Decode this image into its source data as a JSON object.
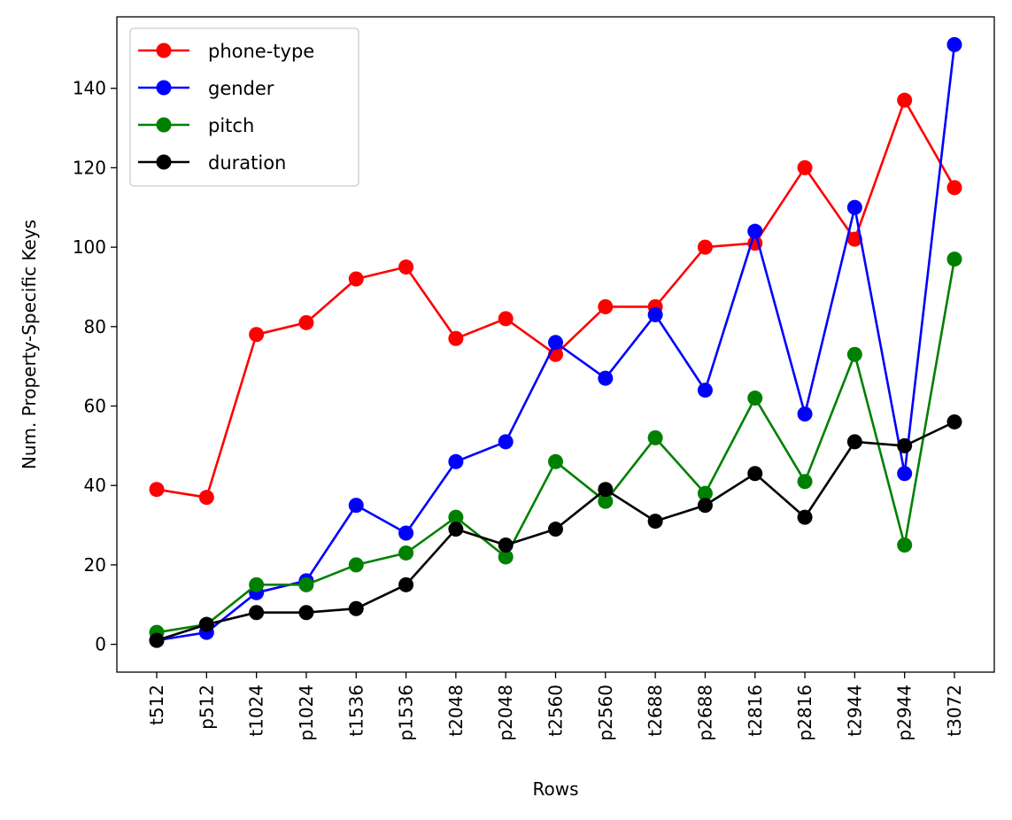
{
  "chart_data": {
    "type": "line",
    "xlabel": "Rows",
    "ylabel": "Num. Property-Specific Keys",
    "categories": [
      "t512",
      "p512",
      "t1024",
      "p1024",
      "t1536",
      "p1536",
      "t2048",
      "p2048",
      "t2560",
      "p2560",
      "t2688",
      "p2688",
      "t2816",
      "p2816",
      "t2944",
      "p2944",
      "t3072"
    ],
    "ylim": [
      -7,
      158
    ],
    "yticks": [
      0,
      20,
      40,
      60,
      80,
      100,
      120,
      140
    ],
    "grid": false,
    "legend_position": "top-left",
    "series": [
      {
        "name": "phone-type",
        "color": "#ff0000",
        "values": [
          39,
          37,
          78,
          81,
          92,
          95,
          77,
          82,
          73,
          85,
          85,
          100,
          101,
          120,
          102,
          137,
          115
        ]
      },
      {
        "name": "gender",
        "color": "#0000ff",
        "values": [
          1,
          3,
          13,
          16,
          35,
          28,
          46,
          51,
          76,
          67,
          83,
          64,
          104,
          58,
          110,
          43,
          151
        ]
      },
      {
        "name": "pitch",
        "color": "#008000",
        "values": [
          3,
          5,
          15,
          15,
          20,
          23,
          32,
          22,
          46,
          36,
          52,
          38,
          62,
          41,
          73,
          25,
          97
        ]
      },
      {
        "name": "duration",
        "color": "#000000",
        "values": [
          1,
          5,
          8,
          8,
          9,
          15,
          29,
          25,
          29,
          39,
          31,
          35,
          43,
          32,
          51,
          50,
          56
        ]
      }
    ]
  }
}
